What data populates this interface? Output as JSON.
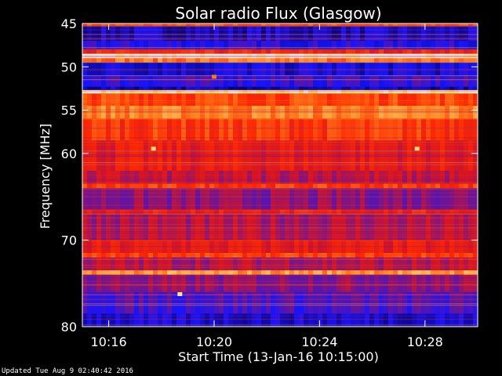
{
  "chart_data": {
    "type": "heatmap",
    "title": "Solar radio Flux (Glasgow)",
    "xlabel": "Start Time (13-Jan-16 10:15:00)",
    "ylabel": "Frequency [MHz]",
    "x_range_minutes": [
      10.25,
      10.5
    ],
    "xlim": [
      "10:15:00",
      "10:30:00"
    ],
    "ylim": [
      45,
      80
    ],
    "x_ticks": [
      "10:16",
      "10:20",
      "10:24",
      "10:28"
    ],
    "x_tick_values": [
      1,
      5,
      9,
      13
    ],
    "y_ticks": [
      "45",
      "50",
      "55",
      "60",
      "70",
      "80"
    ],
    "y_tick_values": [
      45,
      50,
      55,
      60,
      70,
      80
    ],
    "colormap": "blue-red-yellow-white",
    "bands": [
      {
        "from": 45.0,
        "to": 45.3,
        "level": 0.6
      },
      {
        "from": 45.3,
        "to": 47.0,
        "level": 0.12
      },
      {
        "from": 47.0,
        "to": 48.0,
        "level": 0.2
      },
      {
        "from": 48.0,
        "to": 48.5,
        "level": 0.55
      },
      {
        "from": 48.5,
        "to": 49.0,
        "level": 0.98
      },
      {
        "from": 49.0,
        "to": 49.5,
        "level": 0.7
      },
      {
        "from": 49.5,
        "to": 51.0,
        "level": 0.15
      },
      {
        "from": 51.0,
        "to": 52.3,
        "level": 0.22
      },
      {
        "from": 52.3,
        "to": 52.7,
        "level": 0.1
      },
      {
        "from": 52.7,
        "to": 53.1,
        "level": 0.9
      },
      {
        "from": 53.1,
        "to": 54.5,
        "level": 0.62
      },
      {
        "from": 54.5,
        "to": 56.0,
        "level": 0.72
      },
      {
        "from": 56.0,
        "to": 58.5,
        "level": 0.6
      },
      {
        "from": 58.5,
        "to": 62.0,
        "level": 0.5
      },
      {
        "from": 62.0,
        "to": 63.5,
        "level": 0.42
      },
      {
        "from": 63.5,
        "to": 64.0,
        "level": 0.6
      },
      {
        "from": 64.0,
        "to": 66.5,
        "level": 0.35
      },
      {
        "from": 66.5,
        "to": 67.0,
        "level": 0.55
      },
      {
        "from": 67.0,
        "to": 70.0,
        "level": 0.4
      },
      {
        "from": 70.0,
        "to": 71.5,
        "level": 0.5
      },
      {
        "from": 71.5,
        "to": 72.0,
        "level": 0.62
      },
      {
        "from": 72.0,
        "to": 73.5,
        "level": 0.4
      },
      {
        "from": 73.5,
        "to": 74.0,
        "level": 0.75
      },
      {
        "from": 74.0,
        "to": 76.0,
        "level": 0.35
      },
      {
        "from": 76.0,
        "to": 78.5,
        "level": 0.25
      },
      {
        "from": 78.5,
        "to": 80.0,
        "level": 0.14
      }
    ],
    "hotspots": [
      {
        "x_min": 5.0,
        "y": 51.1,
        "level": 0.7
      },
      {
        "x_min": 2.7,
        "y": 59.4,
        "level": 0.85
      },
      {
        "x_min": 12.7,
        "y": 59.4,
        "level": 0.85
      },
      {
        "x_min": 3.7,
        "y": 76.2,
        "level": 0.88
      }
    ]
  },
  "footer": {
    "updated": "Updated Tue Aug  9 02:40:42 2016"
  }
}
